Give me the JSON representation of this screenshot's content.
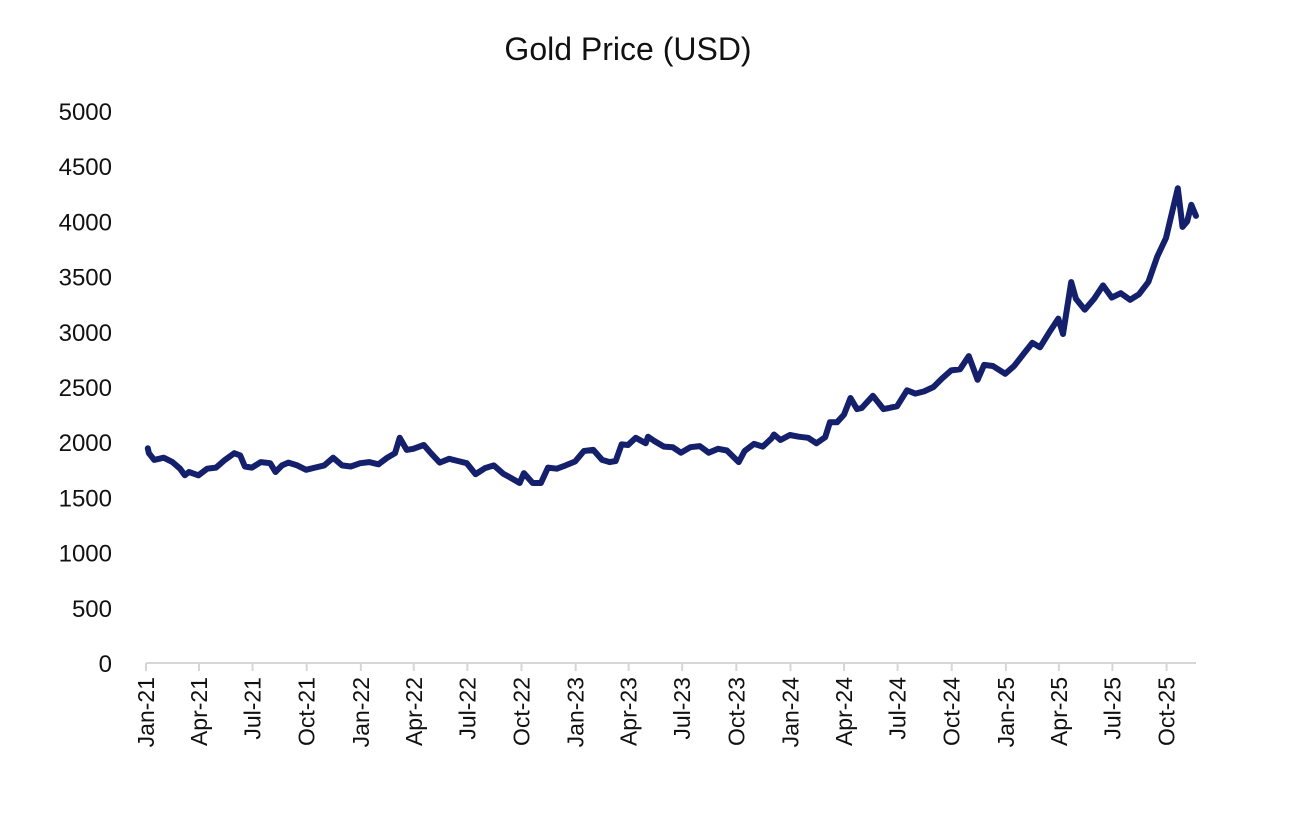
{
  "chart_data": {
    "type": "line",
    "title": "Gold Price (USD)",
    "xlabel": "",
    "ylabel": "",
    "ylim": [
      0,
      5000
    ],
    "yticks": [
      0,
      500,
      1000,
      1500,
      2000,
      2500,
      3000,
      3500,
      4000,
      4500,
      5000
    ],
    "xlim": [
      "2021-01-01",
      "2025-11-20"
    ],
    "xticks": [
      {
        "label": "Jan-21",
        "date": "2021-01-01"
      },
      {
        "label": "Apr-21",
        "date": "2021-04-01"
      },
      {
        "label": "Jul-21",
        "date": "2021-07-01"
      },
      {
        "label": "Oct-21",
        "date": "2021-10-01"
      },
      {
        "label": "Jan-22",
        "date": "2022-01-01"
      },
      {
        "label": "Apr-22",
        "date": "2022-04-01"
      },
      {
        "label": "Jul-22",
        "date": "2022-07-01"
      },
      {
        "label": "Oct-22",
        "date": "2022-10-01"
      },
      {
        "label": "Jan-23",
        "date": "2023-01-01"
      },
      {
        "label": "Apr-23",
        "date": "2023-04-01"
      },
      {
        "label": "Jul-23",
        "date": "2023-07-01"
      },
      {
        "label": "Oct-23",
        "date": "2023-10-01"
      },
      {
        "label": "Jan-24",
        "date": "2024-01-01"
      },
      {
        "label": "Apr-24",
        "date": "2024-04-01"
      },
      {
        "label": "Jul-24",
        "date": "2024-07-01"
      },
      {
        "label": "Oct-24",
        "date": "2024-10-01"
      },
      {
        "label": "Jan-25",
        "date": "2025-01-01"
      },
      {
        "label": "Apr-25",
        "date": "2025-04-01"
      },
      {
        "label": "Jul-25",
        "date": "2025-07-01"
      },
      {
        "label": "Oct-25",
        "date": "2025-10-01"
      }
    ],
    "grid": false,
    "legend": "none",
    "line_color": "#14206b",
    "series": [
      {
        "name": "",
        "points": [
          [
            "2021-01-04",
            1945
          ],
          [
            "2021-01-06",
            1900
          ],
          [
            "2021-01-15",
            1840
          ],
          [
            "2021-01-31",
            1860
          ],
          [
            "2021-02-15",
            1820
          ],
          [
            "2021-02-28",
            1760
          ],
          [
            "2021-03-08",
            1700
          ],
          [
            "2021-03-15",
            1730
          ],
          [
            "2021-03-31",
            1700
          ],
          [
            "2021-04-15",
            1760
          ],
          [
            "2021-04-30",
            1770
          ],
          [
            "2021-05-15",
            1840
          ],
          [
            "2021-05-31",
            1900
          ],
          [
            "2021-06-10",
            1880
          ],
          [
            "2021-06-18",
            1780
          ],
          [
            "2021-06-30",
            1770
          ],
          [
            "2021-07-15",
            1820
          ],
          [
            "2021-07-31",
            1810
          ],
          [
            "2021-08-09",
            1730
          ],
          [
            "2021-08-20",
            1790
          ],
          [
            "2021-08-31",
            1815
          ],
          [
            "2021-09-15",
            1790
          ],
          [
            "2021-09-30",
            1750
          ],
          [
            "2021-10-15",
            1770
          ],
          [
            "2021-10-31",
            1790
          ],
          [
            "2021-11-15",
            1860
          ],
          [
            "2021-11-30",
            1790
          ],
          [
            "2021-12-15",
            1780
          ],
          [
            "2021-12-31",
            1810
          ],
          [
            "2022-01-15",
            1820
          ],
          [
            "2022-01-31",
            1800
          ],
          [
            "2022-02-15",
            1860
          ],
          [
            "2022-02-28",
            1900
          ],
          [
            "2022-03-08",
            2040
          ],
          [
            "2022-03-20",
            1930
          ],
          [
            "2022-03-31",
            1940
          ],
          [
            "2022-04-18",
            1975
          ],
          [
            "2022-04-30",
            1900
          ],
          [
            "2022-05-15",
            1815
          ],
          [
            "2022-05-31",
            1850
          ],
          [
            "2022-06-15",
            1830
          ],
          [
            "2022-06-30",
            1810
          ],
          [
            "2022-07-15",
            1710
          ],
          [
            "2022-07-31",
            1765
          ],
          [
            "2022-08-15",
            1790
          ],
          [
            "2022-08-31",
            1715
          ],
          [
            "2022-09-15",
            1670
          ],
          [
            "2022-09-28",
            1630
          ],
          [
            "2022-10-05",
            1720
          ],
          [
            "2022-10-20",
            1630
          ],
          [
            "2022-11-03",
            1630
          ],
          [
            "2022-11-15",
            1770
          ],
          [
            "2022-11-30",
            1760
          ],
          [
            "2022-12-15",
            1790
          ],
          [
            "2022-12-31",
            1825
          ],
          [
            "2023-01-15",
            1920
          ],
          [
            "2023-01-31",
            1930
          ],
          [
            "2023-02-15",
            1840
          ],
          [
            "2023-02-28",
            1820
          ],
          [
            "2023-03-10",
            1830
          ],
          [
            "2023-03-20",
            1980
          ],
          [
            "2023-03-31",
            1975
          ],
          [
            "2023-04-13",
            2040
          ],
          [
            "2023-04-30",
            1990
          ],
          [
            "2023-05-04",
            2050
          ],
          [
            "2023-05-15",
            2010
          ],
          [
            "2023-05-31",
            1960
          ],
          [
            "2023-06-15",
            1955
          ],
          [
            "2023-06-29",
            1905
          ],
          [
            "2023-07-15",
            1955
          ],
          [
            "2023-07-31",
            1965
          ],
          [
            "2023-08-15",
            1905
          ],
          [
            "2023-08-31",
            1940
          ],
          [
            "2023-09-15",
            1925
          ],
          [
            "2023-10-05",
            1820
          ],
          [
            "2023-10-15",
            1920
          ],
          [
            "2023-10-31",
            1985
          ],
          [
            "2023-11-15",
            1960
          ],
          [
            "2023-11-30",
            2035
          ],
          [
            "2023-12-04",
            2070
          ],
          [
            "2023-12-15",
            2020
          ],
          [
            "2023-12-31",
            2065
          ],
          [
            "2024-01-15",
            2050
          ],
          [
            "2024-01-31",
            2040
          ],
          [
            "2024-02-14",
            1990
          ],
          [
            "2024-02-29",
            2045
          ],
          [
            "2024-03-08",
            2180
          ],
          [
            "2024-03-20",
            2180
          ],
          [
            "2024-04-01",
            2250
          ],
          [
            "2024-04-12",
            2400
          ],
          [
            "2024-04-23",
            2300
          ],
          [
            "2024-05-01",
            2310
          ],
          [
            "2024-05-20",
            2420
          ],
          [
            "2024-06-07",
            2300
          ],
          [
            "2024-06-30",
            2325
          ],
          [
            "2024-07-17",
            2470
          ],
          [
            "2024-07-31",
            2440
          ],
          [
            "2024-08-15",
            2460
          ],
          [
            "2024-08-31",
            2500
          ],
          [
            "2024-09-15",
            2580
          ],
          [
            "2024-09-30",
            2650
          ],
          [
            "2024-10-15",
            2660
          ],
          [
            "2024-10-30",
            2780
          ],
          [
            "2024-11-14",
            2565
          ],
          [
            "2024-11-25",
            2700
          ],
          [
            "2024-12-10",
            2690
          ],
          [
            "2024-12-31",
            2620
          ],
          [
            "2025-01-15",
            2690
          ],
          [
            "2025-01-31",
            2800
          ],
          [
            "2025-02-15",
            2900
          ],
          [
            "2025-02-28",
            2860
          ],
          [
            "2025-03-15",
            2990
          ],
          [
            "2025-03-31",
            3120
          ],
          [
            "2025-04-08",
            2980
          ],
          [
            "2025-04-22",
            3450
          ],
          [
            "2025-04-30",
            3300
          ],
          [
            "2025-05-15",
            3200
          ],
          [
            "2025-05-31",
            3300
          ],
          [
            "2025-06-15",
            3420
          ],
          [
            "2025-06-30",
            3310
          ],
          [
            "2025-07-15",
            3350
          ],
          [
            "2025-07-31",
            3290
          ],
          [
            "2025-08-15",
            3340
          ],
          [
            "2025-08-31",
            3450
          ],
          [
            "2025-09-15",
            3680
          ],
          [
            "2025-09-30",
            3850
          ],
          [
            "2025-10-08",
            4030
          ],
          [
            "2025-10-20",
            4300
          ],
          [
            "2025-10-28",
            3950
          ],
          [
            "2025-11-05",
            4000
          ],
          [
            "2025-11-12",
            4150
          ],
          [
            "2025-11-20",
            4050
          ]
        ]
      }
    ]
  }
}
